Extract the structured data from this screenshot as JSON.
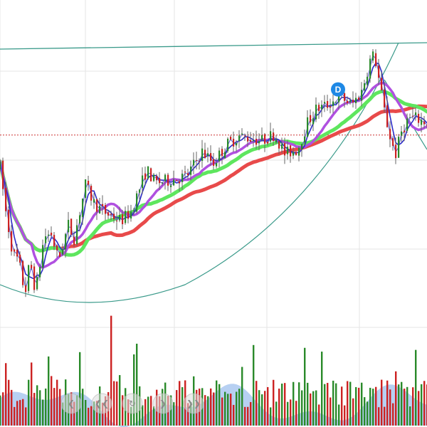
{
  "chart_data": {
    "type": "candlestick",
    "title": "",
    "xlabel": "",
    "ylabel": "",
    "ylim": [
      0,
      100
    ],
    "grid": true,
    "colors": {
      "up": "#2a8a2a",
      "down": "#cc2222",
      "wick": "#666666",
      "ma_fast": "#2c2cc8",
      "ma_mid": "#b050e0",
      "ma_green": "#5ee65e",
      "ma_red": "#e84a4a",
      "trendline": "#3a9a8a",
      "reference": "#cc3333",
      "volume_area": "#9fc0ee",
      "grid": "#e4e4e4",
      "marker": "#1e88e5"
    },
    "keypoints": [
      [
        0,
        64
      ],
      [
        8,
        44
      ],
      [
        18,
        25
      ],
      [
        26,
        22
      ],
      [
        35,
        7
      ],
      [
        42,
        22
      ],
      [
        50,
        8
      ],
      [
        62,
        33
      ],
      [
        72,
        34
      ],
      [
        82,
        22
      ],
      [
        96,
        38
      ],
      [
        104,
        32
      ],
      [
        120,
        56
      ],
      [
        132,
        48
      ],
      [
        145,
        44
      ],
      [
        170,
        40
      ],
      [
        184,
        44
      ],
      [
        206,
        63
      ],
      [
        218,
        57
      ],
      [
        236,
        58
      ],
      [
        262,
        60
      ],
      [
        284,
        71
      ],
      [
        300,
        66
      ],
      [
        318,
        74
      ],
      [
        336,
        78
      ],
      [
        352,
        77
      ],
      [
        368,
        76
      ],
      [
        386,
        79
      ],
      [
        400,
        70
      ],
      [
        418,
        72
      ],
      [
        432,
        84
      ],
      [
        444,
        90
      ],
      [
        460,
        92
      ],
      [
        478,
        96
      ],
      [
        494,
        92
      ],
      [
        508,
        98
      ],
      [
        520,
        112
      ],
      [
        526,
        115
      ],
      [
        534,
        100
      ],
      [
        542,
        86
      ],
      [
        550,
        75
      ],
      [
        556,
        70
      ],
      [
        564,
        80
      ],
      [
        574,
        86
      ],
      [
        584,
        86
      ],
      [
        600,
        84
      ]
    ],
    "reference_value": 78.5,
    "annotation_marker": {
      "label": "D",
      "value": 99
    },
    "toolbar": {
      "icons": [
        "previous-icon",
        "first-icon",
        "refresh-icon",
        "next-icon",
        "last-icon"
      ]
    }
  }
}
